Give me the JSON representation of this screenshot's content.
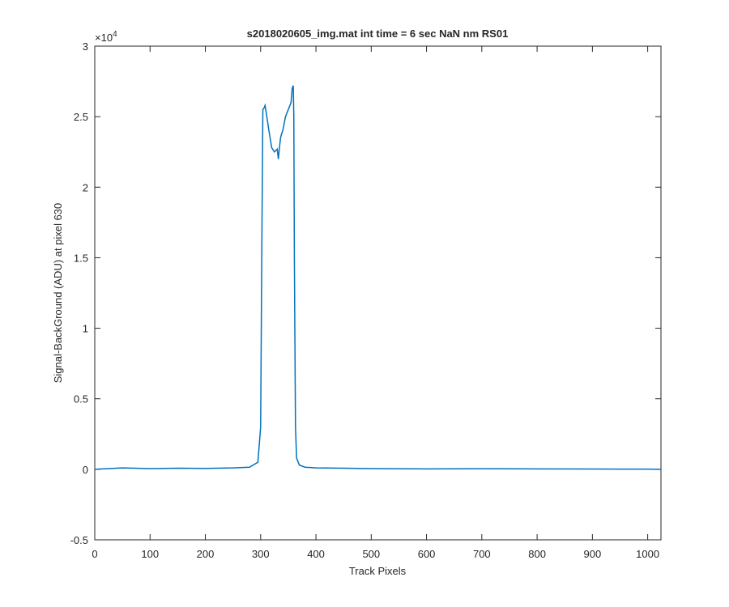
{
  "chart_data": {
    "type": "line",
    "title": "s2018020605_img.mat int time = 6 sec  NaN nm RS01",
    "x_label": "Track Pixels",
    "y_label": "Signal-BackGround (ADU) at pixel 630",
    "y_exponent_base": "×10",
    "y_exponent_power": "4",
    "x": [
      0,
      50,
      100,
      150,
      200,
      250,
      280,
      295,
      300,
      302,
      304,
      306,
      308,
      310,
      315,
      320,
      325,
      330,
      332,
      334,
      336,
      338,
      340,
      345,
      350,
      355,
      357,
      359,
      360,
      361,
      363,
      365,
      370,
      380,
      400,
      450,
      500,
      600,
      700,
      800,
      900,
      1000,
      1024
    ],
    "series": [
      {
        "color": "#0072bd",
        "values": [
          0,
          100,
          50,
          80,
          60,
          100,
          150,
          500,
          3000,
          15000,
          25500,
          25600,
          25800,
          25300,
          24000,
          22800,
          22500,
          22700,
          22000,
          22800,
          23500,
          23800,
          24000,
          25000,
          25500,
          26000,
          27000,
          27200,
          25000,
          15000,
          3000,
          800,
          300,
          150,
          100,
          80,
          50,
          30,
          40,
          30,
          20,
          10,
          0
        ]
      }
    ],
    "xlim": [
      0,
      1024
    ],
    "xticks": [
      0,
      100,
      200,
      300,
      400,
      500,
      600,
      700,
      800,
      900,
      1000
    ],
    "ylim": [
      -5000,
      30000
    ],
    "yticks": [
      {
        "value": -5000,
        "label": "-0.5"
      },
      0,
      {
        "value": 5000,
        "label": "0.5"
      },
      {
        "value": 10000,
        "label": "1"
      },
      {
        "value": 15000,
        "label": "1.5"
      },
      {
        "value": 20000,
        "label": "2"
      },
      {
        "value": 25000,
        "label": "2.5"
      },
      {
        "value": 30000,
        "label": "3"
      }
    ]
  }
}
